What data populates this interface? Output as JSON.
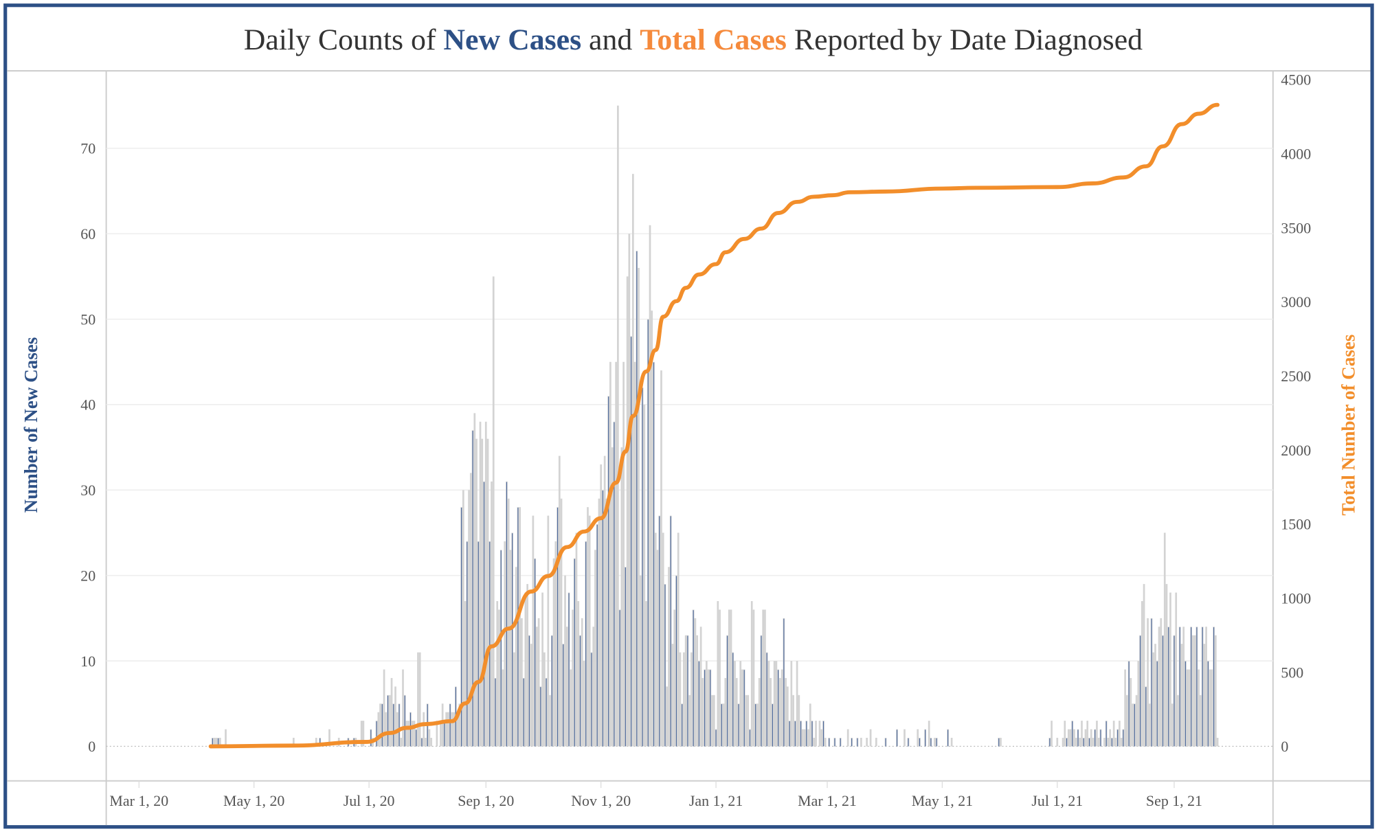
{
  "chart_data": {
    "type": "bar+line",
    "title": {
      "part1": "Daily Counts of ",
      "part2": "New Cases",
      "part3": " and ",
      "part4": "Total Cases",
      "part5": " Reported by Date Diagnosed"
    },
    "ylabel_left": "Number of New Cases",
    "ylabel_right": "Total Number of Cases",
    "ylim_left": [
      -4,
      79
    ],
    "ylim_right": [
      0,
      4500
    ],
    "yticks_left": [
      "0",
      "10",
      "20",
      "30",
      "40",
      "50",
      "60",
      "70"
    ],
    "yticks_right": [
      "0",
      "500",
      "1000",
      "1500",
      "2000",
      "2500",
      "3000",
      "3500",
      "4000",
      "4500"
    ],
    "xticks": [
      {
        "date": "2020-03-01",
        "label": "Mar 1, 20"
      },
      {
        "date": "2020-05-01",
        "label": "May 1, 20"
      },
      {
        "date": "2020-07-01",
        "label": "Jul 1, 20"
      },
      {
        "date": "2020-09-01",
        "label": "Sep 1, 20"
      },
      {
        "date": "2020-11-01",
        "label": "Nov 1, 20"
      },
      {
        "date": "2021-01-01",
        "label": "Jan 1, 21"
      },
      {
        "date": "2021-03-01",
        "label": "Mar 1, 21"
      },
      {
        "date": "2021-05-01",
        "label": "May 1, 21"
      },
      {
        "date": "2021-07-01",
        "label": "Jul 1, 21"
      },
      {
        "date": "2021-09-01",
        "label": "Sep 1, 21"
      }
    ],
    "grid": true,
    "colors": {
      "new_cases": "#4e6a9c",
      "new_cases_bar": "#d3d3d3",
      "total_cases": "#f28e2b",
      "frame": "#2d5086",
      "title_blue": "#2d5086",
      "title_orange": "#f58a3c"
    },
    "new_cases": {
      "start_date": "2020-04-09",
      "values": [
        1,
        1,
        1,
        1,
        1,
        0,
        0,
        2,
        0,
        0,
        0,
        0,
        0,
        0,
        0,
        0,
        0,
        0,
        0,
        0,
        0,
        0,
        0,
        0,
        0,
        0,
        0,
        0,
        0,
        0,
        0,
        0,
        0,
        0,
        0,
        0,
        0,
        0,
        0,
        0,
        0,
        0,
        0,
        1,
        0,
        0,
        0,
        0,
        0,
        0,
        0,
        0,
        0,
        0,
        0,
        1,
        0,
        1,
        0,
        0,
        0,
        0,
        2,
        0,
        0,
        0,
        0,
        1,
        0,
        0,
        0,
        0,
        1,
        0,
        0,
        1,
        1,
        0,
        0,
        3,
        3,
        0,
        0,
        0,
        2,
        1,
        0,
        3,
        4,
        5,
        5,
        9,
        4,
        6,
        6,
        8,
        5,
        7,
        4,
        5,
        1,
        9,
        6,
        3,
        3,
        4,
        3,
        3,
        2,
        11,
        11,
        1,
        4,
        1,
        5,
        2,
        1,
        0,
        0,
        3,
        0,
        3,
        5,
        3,
        4,
        4,
        5,
        4,
        4,
        7,
        4,
        5,
        28,
        30,
        17,
        24,
        30,
        32,
        37,
        39,
        36,
        24,
        38,
        36,
        31,
        38,
        36,
        24,
        31,
        55,
        8,
        17,
        16,
        23,
        9,
        24,
        31,
        29,
        23,
        25,
        11,
        21,
        28,
        28,
        15,
        8,
        18,
        19,
        13,
        12,
        27,
        22,
        14,
        15,
        7,
        18,
        11,
        8,
        27,
        6,
        13,
        22,
        24,
        28,
        34,
        29,
        12,
        20,
        14,
        18,
        9,
        16,
        22,
        25,
        17,
        13,
        15,
        10,
        24,
        28,
        27,
        11,
        14,
        23,
        26,
        29,
        33,
        30,
        34,
        29,
        41,
        45,
        35,
        38,
        45,
        75,
        16,
        35,
        45,
        21,
        55,
        60,
        48,
        67,
        45,
        58,
        56,
        20,
        42,
        40,
        17,
        50,
        61,
        51,
        45,
        25,
        23,
        27,
        44,
        25,
        19,
        7,
        21,
        27,
        12,
        16,
        20,
        25,
        11,
        5,
        11,
        13,
        13,
        6,
        11,
        16,
        15,
        13,
        10,
        14,
        8,
        9,
        10,
        9,
        9,
        6,
        6,
        2,
        17,
        16,
        5,
        5,
        8,
        13,
        16,
        16,
        11,
        10,
        8,
        5,
        10,
        9,
        9,
        6,
        6,
        2,
        17,
        16,
        5,
        5,
        8,
        13,
        16,
        16,
        11,
        10,
        8,
        5,
        10,
        10,
        9,
        8,
        9,
        15,
        8,
        7,
        3,
        10,
        6,
        3,
        10,
        6,
        3,
        2,
        2,
        3,
        2,
        5,
        3,
        1,
        3,
        0,
        3,
        2,
        3,
        1,
        0,
        1,
        0,
        0,
        1,
        0,
        0,
        1,
        0,
        0,
        0,
        2,
        0,
        1,
        0,
        0,
        1,
        0,
        1,
        0,
        0,
        1,
        0,
        2,
        0,
        0,
        1,
        0,
        0,
        0,
        0,
        1,
        0,
        0,
        0,
        0,
        0,
        2,
        0,
        0,
        0,
        2,
        0,
        1,
        0,
        0,
        0,
        0,
        2,
        1,
        0,
        0,
        2,
        0,
        3,
        1,
        0,
        1,
        1,
        0,
        0,
        0,
        0,
        0,
        2,
        0,
        1,
        0,
        0,
        0,
        0,
        0,
        0,
        0,
        0,
        0,
        0,
        0,
        0,
        0,
        0,
        0,
        0,
        0,
        0,
        0,
        0,
        0,
        0,
        0,
        0,
        1,
        1,
        0,
        0,
        0,
        0,
        0,
        0,
        0,
        0,
        0,
        0,
        0,
        0,
        0,
        0,
        0,
        0,
        0,
        0,
        0,
        0,
        0,
        0,
        0,
        0,
        0,
        1,
        3,
        0,
        0,
        1,
        0,
        0,
        1,
        3,
        1,
        2,
        2,
        3,
        2,
        1,
        2,
        1,
        3,
        1,
        2,
        3,
        1,
        2,
        1,
        2,
        3,
        1,
        2,
        0,
        1,
        3,
        1,
        2,
        1,
        3,
        1,
        2,
        3,
        1,
        2,
        9,
        6,
        10,
        8,
        5,
        5,
        6,
        10,
        13,
        17,
        19,
        7,
        15,
        5,
        15,
        11,
        12,
        10,
        14,
        15,
        13,
        25,
        19,
        14,
        18,
        5,
        13,
        18,
        6,
        14,
        12,
        14,
        10,
        9,
        9,
        14,
        13,
        13,
        14,
        9,
        6,
        14,
        12,
        14,
        10,
        9,
        9,
        14,
        13,
        1
      ]
    },
    "total_cases": [
      [
        "2020-04-08",
        0
      ],
      [
        "2020-05-21",
        5
      ],
      [
        "2020-06-30",
        30
      ],
      [
        "2020-07-12",
        90
      ],
      [
        "2020-07-21",
        125
      ],
      [
        "2020-07-31",
        150
      ],
      [
        "2020-08-14",
        170
      ],
      [
        "2020-08-21",
        290
      ],
      [
        "2020-08-28",
        435
      ],
      [
        "2020-09-04",
        675
      ],
      [
        "2020-09-13",
        795
      ],
      [
        "2020-09-25",
        1045
      ],
      [
        "2020-10-04",
        1150
      ],
      [
        "2020-10-14",
        1345
      ],
      [
        "2020-10-23",
        1450
      ],
      [
        "2020-11-01",
        1540
      ],
      [
        "2020-11-09",
        1780
      ],
      [
        "2020-11-14",
        1990
      ],
      [
        "2020-11-18",
        2230
      ],
      [
        "2020-11-25",
        2530
      ],
      [
        "2020-11-30",
        2675
      ],
      [
        "2020-12-04",
        2900
      ],
      [
        "2020-12-11",
        3005
      ],
      [
        "2020-12-16",
        3095
      ],
      [
        "2020-12-23",
        3185
      ],
      [
        "2021-01-01",
        3255
      ],
      [
        "2021-01-06",
        3335
      ],
      [
        "2021-01-16",
        3425
      ],
      [
        "2021-01-25",
        3495
      ],
      [
        "2021-02-03",
        3600
      ],
      [
        "2021-02-13",
        3675
      ],
      [
        "2021-02-22",
        3710
      ],
      [
        "2021-03-04",
        3720
      ],
      [
        "2021-03-13",
        3740
      ],
      [
        "2021-04-01",
        3745
      ],
      [
        "2021-05-01",
        3765
      ],
      [
        "2021-05-19",
        3770
      ],
      [
        "2021-07-01",
        3775
      ],
      [
        "2021-07-20",
        3800
      ],
      [
        "2021-08-05",
        3840
      ],
      [
        "2021-08-17",
        3915
      ],
      [
        "2021-08-26",
        4050
      ],
      [
        "2021-09-05",
        4200
      ],
      [
        "2021-09-14",
        4270
      ],
      [
        "2021-09-24",
        4330
      ]
    ]
  }
}
